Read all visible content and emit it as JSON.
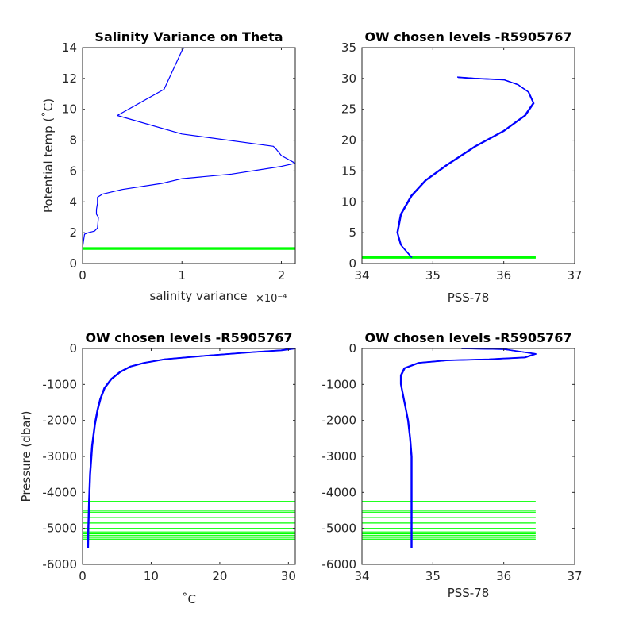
{
  "colors": {
    "profile": "#0000ff",
    "levels": "#00ff00",
    "axes": "#262626"
  },
  "chart_data": [
    {
      "type": "line",
      "title": "Salinity Variance on Theta",
      "xlabel": "salinity variance",
      "x_exponent": "×10⁻⁴",
      "ylabel": "Potential temp (˚C)",
      "xlim": [
        0,
        2.14
      ],
      "ylim": [
        0,
        14
      ],
      "xticks": [
        0,
        1,
        2
      ],
      "yticks": [
        0,
        2,
        4,
        6,
        8,
        10,
        12,
        14
      ],
      "series": [
        {
          "x": [
            0.0,
            0.01,
            0.02,
            0.06,
            0.12,
            0.15,
            0.16,
            0.14,
            0.14,
            0.15,
            0.15,
            0.2,
            0.4,
            0.8,
            1.0,
            1.5,
            2.0,
            2.14,
            2.0,
            1.95,
            1.92,
            1.0,
            0.35,
            0.82,
            1.0,
            1.02
          ],
          "y": [
            1.0,
            1.5,
            1.9,
            2.0,
            2.1,
            2.3,
            3.0,
            3.2,
            3.5,
            3.9,
            4.3,
            4.5,
            4.8,
            5.2,
            5.5,
            5.8,
            6.3,
            6.5,
            7.0,
            7.4,
            7.6,
            8.4,
            9.6,
            11.3,
            13.8,
            14.0
          ]
        }
      ],
      "hlines": [
        0.95,
        1.0
      ]
    },
    {
      "type": "line",
      "title": "OW chosen levels -R5905767",
      "xlabel": "PSS-78",
      "ylabel": "",
      "xlim": [
        34,
        37
      ],
      "ylim": [
        0,
        35
      ],
      "xticks": [
        34,
        35,
        36,
        37
      ],
      "yticks": [
        0,
        5,
        10,
        15,
        20,
        25,
        30,
        35
      ],
      "series": [
        {
          "x": [
            34.7,
            34.55,
            34.5,
            34.55,
            34.7,
            34.9,
            35.2,
            35.6,
            36.0,
            36.3,
            36.42,
            36.35,
            36.2,
            36.0,
            35.6,
            35.35
          ],
          "y": [
            1.0,
            3.0,
            5.0,
            8.0,
            11.0,
            13.5,
            16.0,
            19.0,
            21.5,
            24.0,
            26.0,
            27.8,
            29.0,
            29.8,
            30.0,
            30.2
          ]
        }
      ],
      "hlines": [
        0.95,
        1.0
      ],
      "hline_xrange": [
        34,
        36.45
      ]
    },
    {
      "type": "line",
      "title": "OW chosen levels -R5905767",
      "xlabel": "˚C",
      "ylabel": "Pressure (dbar)",
      "xlim": [
        0,
        31
      ],
      "ylim": [
        -6000,
        0
      ],
      "xticks": [
        0,
        10,
        20,
        30
      ],
      "yticks": [
        0,
        -1000,
        -2000,
        -3000,
        -4000,
        -5000,
        -6000
      ],
      "series": [
        {
          "x": [
            31.0,
            29.0,
            25.0,
            18.0,
            12.0,
            9.0,
            7.0,
            5.5,
            4.2,
            3.2,
            2.6,
            2.2,
            1.8,
            1.4,
            1.1,
            0.95,
            0.85,
            0.8
          ],
          "y": [
            0,
            -50,
            -100,
            -200,
            -300,
            -400,
            -500,
            -650,
            -850,
            -1100,
            -1400,
            -1700,
            -2100,
            -2700,
            -3500,
            -4300,
            -5000,
            -5550
          ]
        }
      ],
      "hlines": [
        -4250,
        -4500,
        -4550,
        -4700,
        -4850,
        -5000,
        -5100,
        -5150,
        -5200,
        -5250,
        -5300
      ],
      "hline_xrange": [
        0,
        31
      ]
    },
    {
      "type": "line",
      "title": "OW chosen levels -R5905767",
      "xlabel": "PSS-78",
      "ylabel": "",
      "xlim": [
        34,
        37
      ],
      "ylim": [
        -6000,
        0
      ],
      "xticks": [
        34,
        35,
        36,
        37
      ],
      "yticks": [
        0,
        -1000,
        -2000,
        -3000,
        -4000,
        -5000,
        -6000
      ],
      "series": [
        {
          "x": [
            35.4,
            36.0,
            36.45,
            36.3,
            35.8,
            35.2,
            34.8,
            34.6,
            34.55,
            34.55,
            34.6,
            34.65,
            34.68,
            34.7,
            34.7,
            34.7
          ],
          "y": [
            0,
            -20,
            -150,
            -250,
            -300,
            -330,
            -400,
            -550,
            -750,
            -1000,
            -1500,
            -2000,
            -2500,
            -3000,
            -4500,
            -5550
          ]
        }
      ],
      "hlines": [
        -4250,
        -4500,
        -4550,
        -4700,
        -4850,
        -5000,
        -5100,
        -5150,
        -5200,
        -5250,
        -5300
      ],
      "hline_xrange": [
        34,
        36.45
      ]
    }
  ]
}
